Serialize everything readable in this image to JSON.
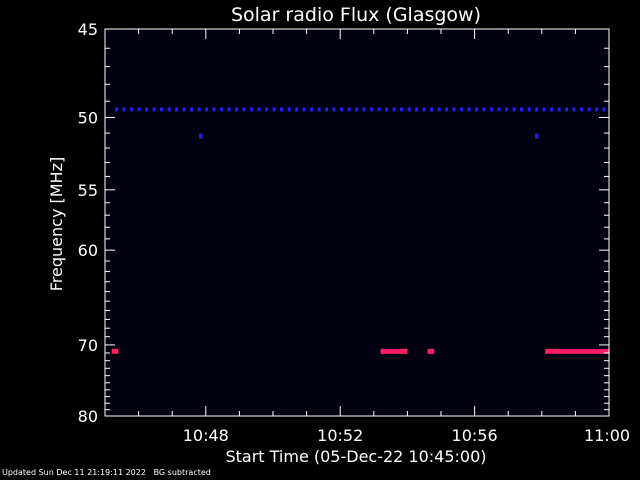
{
  "chart_data": {
    "type": "heatmap",
    "title": "Solar radio Flux (Glasgow)",
    "xlabel": "Start Time (05-Dec-22 10:45:00)",
    "ylabel": "Frequency [MHz]",
    "x_range_minutes_after_start": [
      0,
      15
    ],
    "x_ticks": [
      {
        "minute": 3,
        "label": "10:48"
      },
      {
        "minute": 7,
        "label": "10:52"
      },
      {
        "minute": 11,
        "label": "10:56"
      },
      {
        "minute": 15,
        "label": "11:00"
      }
    ],
    "y_range_mhz": [
      45,
      80
    ],
    "y_ticks": [
      {
        "mhz": 45,
        "label": "45"
      },
      {
        "mhz": 50,
        "label": "50"
      },
      {
        "mhz": 55,
        "label": "55"
      },
      {
        "mhz": 60,
        "label": "60"
      },
      {
        "mhz": 70,
        "label": "70"
      },
      {
        "mhz": 80,
        "label": "80"
      }
    ],
    "y_scale": "reciprocal",
    "background_color": "#000010",
    "colors": {
      "low": "#000010",
      "mid": "#1e1eff",
      "high": "#ff1e64"
    },
    "features": [
      {
        "name": "dashed-emission-49mhz",
        "freq_mhz": 49.5,
        "t_start_min": 0.3,
        "t_end_min": 15,
        "intensity": "mid",
        "pattern": "dashed"
      },
      {
        "name": "spot-51mhz-a",
        "freq_mhz": 51.2,
        "t_start_min": 2.8,
        "t_end_min": 2.9,
        "intensity": "mid"
      },
      {
        "name": "spot-51mhz-b",
        "freq_mhz": 51.2,
        "t_start_min": 12.8,
        "t_end_min": 12.9,
        "intensity": "mid"
      },
      {
        "name": "band-71mhz-a",
        "freq_mhz": 70.8,
        "t_start_min": 0.2,
        "t_end_min": 0.4,
        "intensity": "high"
      },
      {
        "name": "band-71mhz-b",
        "freq_mhz": 70.8,
        "t_start_min": 8.2,
        "t_end_min": 9.0,
        "intensity": "high"
      },
      {
        "name": "band-71mhz-c",
        "freq_mhz": 70.8,
        "t_start_min": 9.6,
        "t_end_min": 9.8,
        "intensity": "high"
      },
      {
        "name": "band-71mhz-d",
        "freq_mhz": 70.8,
        "t_start_min": 13.1,
        "t_end_min": 15,
        "intensity": "high"
      }
    ]
  },
  "footer": {
    "updated": "Updated Sun Dec 11 21:19:11 2022",
    "note": "BG subtracted"
  }
}
